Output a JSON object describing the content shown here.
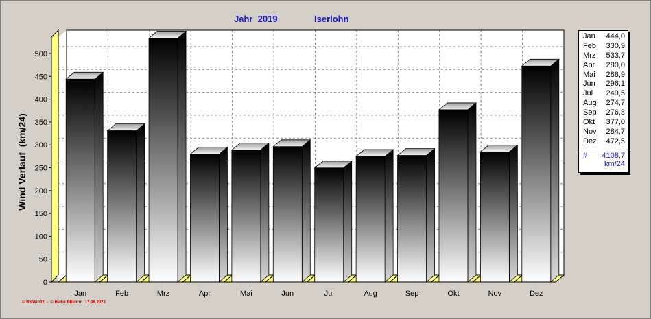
{
  "header": {
    "year_label": "Jahr  2019",
    "location": "Iserlohn"
  },
  "legend": {
    "entries": [
      {
        "label": "Jan",
        "value": "444,0"
      },
      {
        "label": "Feb",
        "value": "330,9"
      },
      {
        "label": "Mrz",
        "value": "533,7"
      },
      {
        "label": "Apr",
        "value": "280,0"
      },
      {
        "label": "Mai",
        "value": "288,9"
      },
      {
        "label": "Jun",
        "value": "296,1"
      },
      {
        "label": "Jul",
        "value": "249,5"
      },
      {
        "label": "Aug",
        "value": "274,7"
      },
      {
        "label": "Sep",
        "value": "276,8"
      },
      {
        "label": "Okt",
        "value": "377,0"
      },
      {
        "label": "Nov",
        "value": "284,7"
      },
      {
        "label": "Dez",
        "value": "472,5"
      }
    ],
    "total_symbol": "#",
    "total_value": "4108,7",
    "total_unit": "km/24"
  },
  "credit": "© WsWin32  -  © Heiko Blüdorn  17.06.2023",
  "colors": {
    "title": "#1a1acc",
    "credit": "#c00000",
    "floor": "#ffff80",
    "background": "#d4d0c8",
    "plot_background": "#ffffff"
  },
  "chart_data": {
    "type": "bar",
    "title": "",
    "xlabel": "",
    "ylabel": "Wind Verlauf  (km/24)",
    "categories": [
      "Jan",
      "Feb",
      "Mrz",
      "Apr",
      "Mai",
      "Jun",
      "Jul",
      "Aug",
      "Sep",
      "Okt",
      "Nov",
      "Dez"
    ],
    "values": [
      444.0,
      330.9,
      533.7,
      280.0,
      288.9,
      296.1,
      249.5,
      274.7,
      276.8,
      377.0,
      284.7,
      472.5
    ],
    "ylim": [
      0,
      550
    ],
    "yticks": [
      0,
      50,
      100,
      150,
      200,
      250,
      300,
      350,
      400,
      450,
      500
    ],
    "grid": true,
    "style": "3d-gradient"
  }
}
